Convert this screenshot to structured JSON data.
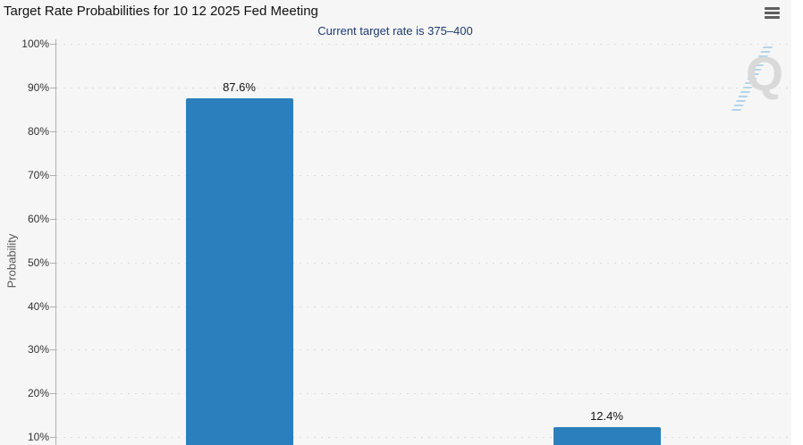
{
  "header": {
    "title": "Target Rate Probabilities for 10 12 2025 Fed Meeting"
  },
  "toolbar": {
    "menu_icon": "hamburger-icon"
  },
  "chart_data": {
    "type": "bar",
    "title": "Target Rate Probabilities for 10 12 2025 Fed Meeting",
    "subtitle": "Current target rate is 375–400",
    "ylabel": "Probability",
    "ylim": [
      10,
      100
    ],
    "ytick_step": 10,
    "ytick_labels": [
      "100%",
      "90%",
      "80%",
      "70%",
      "60%",
      "50%",
      "40%",
      "30%",
      "20%",
      "10%"
    ],
    "grid": {
      "horizontal": true,
      "style": "dotted"
    },
    "legend": {
      "visible": false
    },
    "categories": [
      "",
      ""
    ],
    "series": [
      {
        "name": "Probability",
        "values": [
          87.6,
          12.4
        ]
      }
    ],
    "bar_labels": [
      "87.6%",
      "12.4%"
    ],
    "bar_color": "#2c7fbd"
  },
  "watermark": {
    "letter": "Q"
  },
  "colors": {
    "page_bg": "#f6f6f6",
    "bar": "#2c7fbd",
    "subtitle_text": "#1f3a70",
    "title_text": "#111111",
    "tick_text": "#333333",
    "grid_dot": "#dcdcdc",
    "axis_line": "#b0b0b0",
    "menu_icon": "#5f5f5f",
    "watermark_gray": "#d9d9d9",
    "watermark_blue": "#7db7df"
  }
}
